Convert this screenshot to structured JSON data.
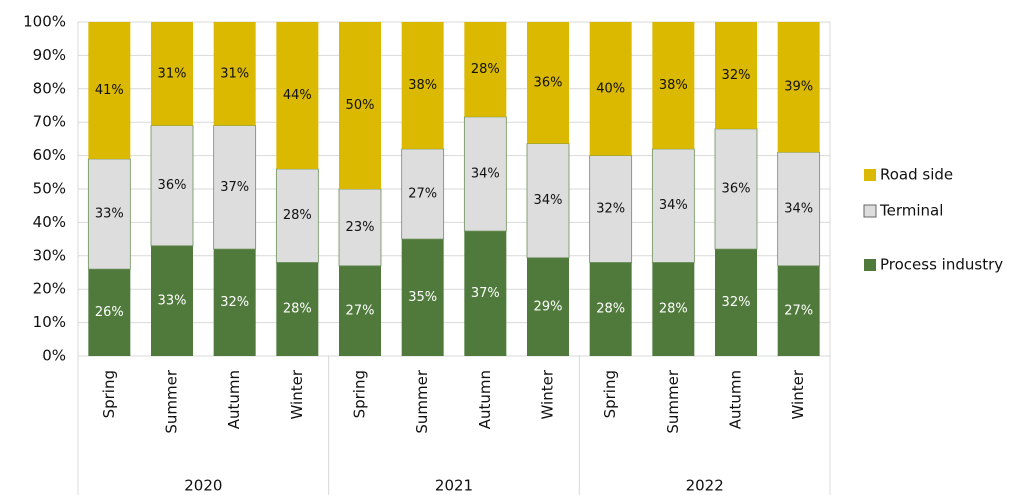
{
  "chart_data": {
    "type": "stacked_bar_100",
    "categories": [
      "Spring",
      "Summer",
      "Autumn",
      "Winter",
      "Spring",
      "Summer",
      "Autumn",
      "Winter",
      "Spring",
      "Summer",
      "Autumn",
      "Winter"
    ],
    "groups": [
      "2020",
      "2021",
      "2022"
    ],
    "series": [
      {
        "name": "Process industry",
        "color": "#4f7a3b",
        "values": [
          26,
          33,
          32,
          28,
          27,
          35,
          37.4,
          29.4,
          28,
          28,
          32,
          27
        ],
        "value_labels": [
          "26%",
          "33%",
          "32%",
          "28%",
          "27%",
          "35%",
          "37%",
          "29%",
          "28%",
          "28%",
          "32%",
          "27%"
        ]
      },
      {
        "name": "Terminal",
        "color": "#dddddd",
        "values": [
          33,
          36,
          37,
          28,
          23,
          27,
          34.2,
          34.2,
          32,
          34,
          36,
          34
        ],
        "value_labels": [
          "33%",
          "36%",
          "37%",
          "28%",
          "23%",
          "27%",
          "34%",
          "34%",
          "32%",
          "34%",
          "36%",
          "34%"
        ]
      },
      {
        "name": "Road side",
        "color": "#dab900",
        "values": [
          41,
          31,
          31,
          44,
          50,
          38,
          28.4,
          36.4,
          40,
          38,
          32,
          39
        ],
        "value_labels": [
          "41%",
          "31%",
          "31%",
          "44%",
          "50%",
          "38%",
          "28%",
          "36%",
          "40%",
          "38%",
          "32%",
          "39%"
        ]
      }
    ],
    "ylim": [
      0,
      100
    ],
    "yticks": [
      {
        "value": 0,
        "label": "0%"
      },
      {
        "value": 10,
        "label": "10%"
      },
      {
        "value": 20,
        "label": "20%"
      },
      {
        "value": 30,
        "label": "30%"
      },
      {
        "value": 40,
        "label": "40%"
      },
      {
        "value": 50,
        "label": "50%"
      },
      {
        "value": 60,
        "label": "60%"
      },
      {
        "value": 70,
        "label": "70%"
      },
      {
        "value": 80,
        "label": "80%"
      },
      {
        "value": 90,
        "label": "90%"
      },
      {
        "value": 100,
        "label": "100%"
      }
    ],
    "grid": true,
    "legend": "right"
  }
}
